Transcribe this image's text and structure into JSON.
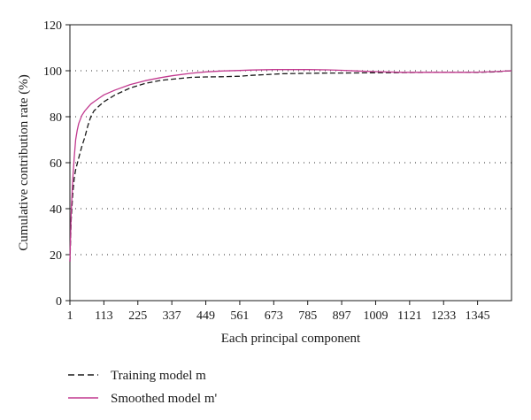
{
  "chart_data": {
    "type": "line",
    "xlabel": "Each principal component",
    "ylabel": "Cumulative contribution rate (%)",
    "xlim": [
      1,
      1457
    ],
    "ylim": [
      0,
      120
    ],
    "x_ticks": [
      "1",
      "113",
      "225",
      "337",
      "449",
      "561",
      "673",
      "785",
      "897",
      "1009",
      "1121",
      "1233",
      "1345"
    ],
    "y_ticks": [
      "0",
      "20",
      "40",
      "60",
      "80",
      "100",
      "120"
    ],
    "grid": "dotted horizontal lines at 20, 40, 60, 80 and 100",
    "legend_position": "below plot, left",
    "series": [
      {
        "name": "Training model m",
        "style": "dashed",
        "color": "#1a1a1a",
        "x": [
          1,
          5,
          10,
          15,
          20,
          30,
          40,
          50,
          60,
          70,
          80,
          100,
          113,
          150,
          200,
          250,
          300,
          337,
          400,
          449,
          500,
          561,
          600,
          673,
          700,
          785,
          850,
          897,
          1000,
          1009,
          1100,
          1121,
          1200,
          1233,
          1300,
          1345,
          1400,
          1457
        ],
        "y": [
          17,
          35,
          46,
          53,
          57,
          62,
          67,
          71,
          76,
          80,
          82.5,
          85,
          86.5,
          89.5,
          92.5,
          94.5,
          95.8,
          96.3,
          97.1,
          97.3,
          97.4,
          97.6,
          98,
          98.5,
          98.7,
          98.9,
          99,
          99,
          99.1,
          99.1,
          99.2,
          99.2,
          99.3,
          99.3,
          99.3,
          99.3,
          99.5,
          100
        ]
      },
      {
        "name": "Smoothed model m'",
        "style": "solid",
        "color": "#c2398f",
        "x": [
          1,
          5,
          10,
          15,
          20,
          25,
          30,
          40,
          50,
          60,
          70,
          80,
          100,
          113,
          150,
          200,
          250,
          300,
          337,
          400,
          449,
          500,
          561,
          600,
          673,
          700,
          785,
          850,
          897,
          950,
          1009,
          1100,
          1121,
          1200,
          1233,
          1300,
          1345,
          1400,
          1457
        ],
        "y": [
          17,
          38,
          52,
          62,
          70,
          74,
          77,
          80.5,
          82.5,
          84,
          85.5,
          86.5,
          88.3,
          89.5,
          91.6,
          94,
          95.7,
          97,
          97.8,
          98.9,
          99.5,
          99.9,
          100.1,
          100.3,
          100.5,
          100.5,
          100.5,
          100.4,
          100.2,
          99.9,
          99.6,
          99.3,
          99.3,
          99.3,
          99.3,
          99.3,
          99.4,
          99.6,
          100
        ]
      }
    ]
  }
}
